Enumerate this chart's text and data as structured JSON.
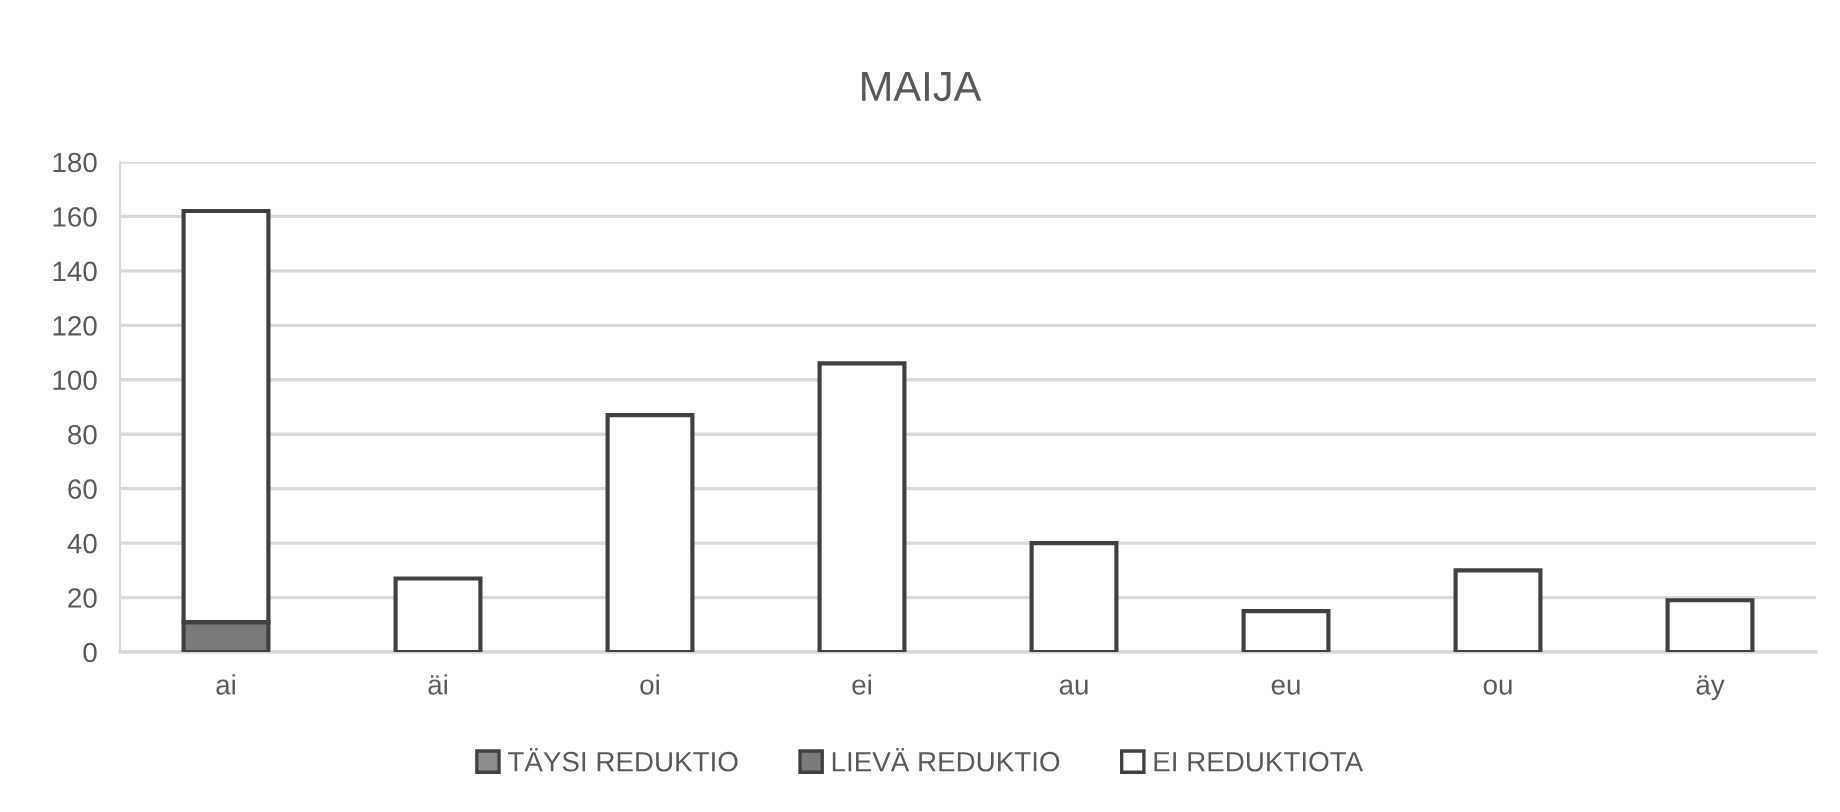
{
  "chart_data": {
    "type": "bar",
    "title": "MAIJA",
    "categories": [
      "ai",
      "äi",
      "oi",
      "ei",
      "au",
      "eu",
      "ou",
      "äy"
    ],
    "stacked": true,
    "series": [
      {
        "name": "TÄYSI REDUKTIO",
        "color": "#8c8c8c",
        "values": [
          0,
          0,
          0,
          0,
          0,
          0,
          0,
          0
        ]
      },
      {
        "name": "LIEVÄ REDUKTIO",
        "color": "#7a7a7a",
        "values": [
          11,
          0,
          0,
          0,
          0,
          0,
          0,
          0
        ]
      },
      {
        "name": "EI REDUKTIOTA",
        "color": "#ffffff",
        "values": [
          151,
          27,
          87,
          106,
          40,
          15,
          30,
          19
        ]
      }
    ],
    "ylim": [
      0,
      180
    ],
    "yticks": [
      0,
      20,
      40,
      60,
      80,
      100,
      120,
      140,
      160,
      180
    ],
    "grid": "y",
    "legend": "bottom"
  }
}
